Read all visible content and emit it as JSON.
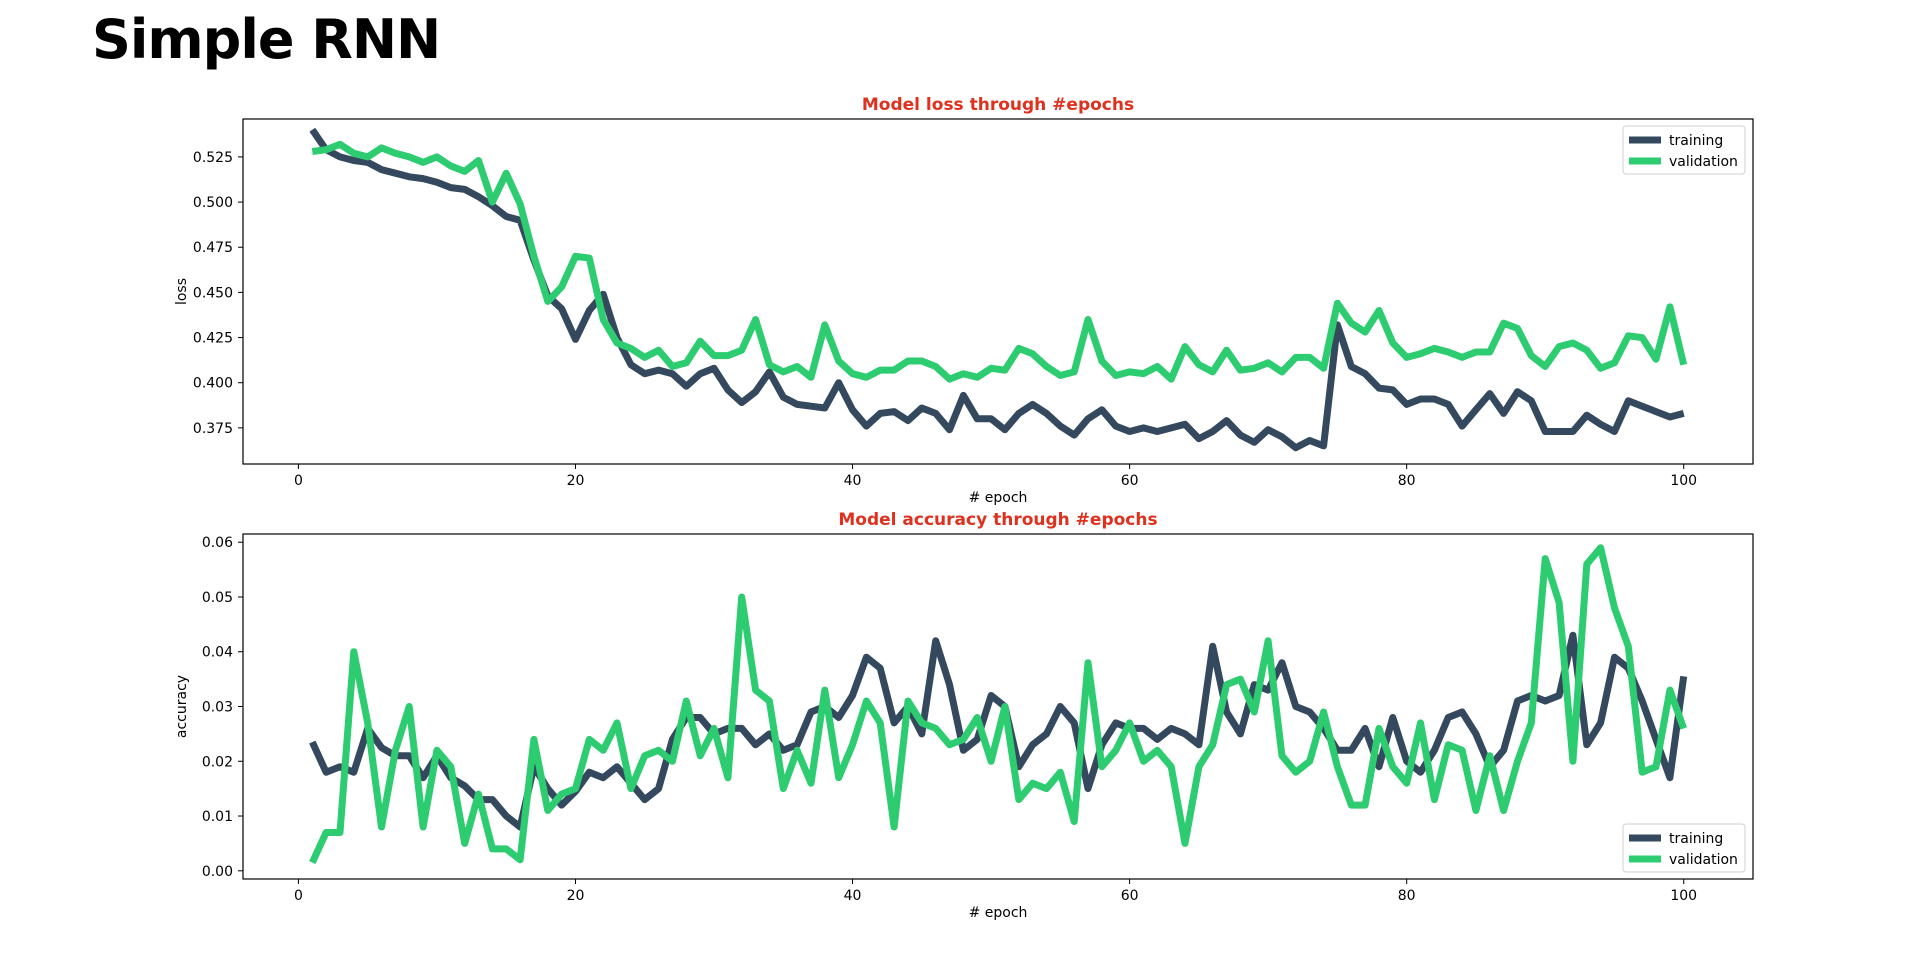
{
  "page": {
    "title": "Simple RNN"
  },
  "colors": {
    "training": "#34495e",
    "validation": "#2ecc71",
    "title": "#e0301e",
    "axis": "#000000"
  },
  "chart_data": [
    {
      "type": "line",
      "title": "Model loss through #epochs",
      "xlabel": "# epoch",
      "ylabel": "loss",
      "xlim": [
        -4,
        105
      ],
      "ylim": [
        0.355,
        0.546
      ],
      "xticks": [
        0,
        20,
        40,
        60,
        80,
        100
      ],
      "yticks": [
        0.375,
        0.4,
        0.425,
        0.45,
        0.475,
        0.5,
        0.525
      ],
      "ytick_labels": [
        "0.375",
        "0.400",
        "0.425",
        "0.450",
        "0.475",
        "0.500",
        "0.525"
      ],
      "legend": "top-right",
      "grid": false,
      "x_start": 1,
      "series": [
        {
          "name": "training",
          "color": "#34495e",
          "values": [
            0.54,
            0.529,
            0.525,
            0.523,
            0.522,
            0.518,
            0.516,
            0.514,
            0.513,
            0.511,
            0.508,
            0.507,
            0.503,
            0.498,
            0.492,
            0.49,
            0.468,
            0.448,
            0.441,
            0.424,
            0.44,
            0.449,
            0.425,
            0.41,
            0.405,
            0.407,
            0.405,
            0.398,
            0.405,
            0.408,
            0.396,
            0.389,
            0.395,
            0.406,
            0.392,
            0.388,
            0.387,
            0.386,
            0.4,
            0.385,
            0.376,
            0.383,
            0.384,
            0.379,
            0.386,
            0.383,
            0.374,
            0.393,
            0.38,
            0.38,
            0.374,
            0.383,
            0.388,
            0.383,
            0.376,
            0.371,
            0.38,
            0.385,
            0.376,
            0.373,
            0.375,
            0.373,
            0.375,
            0.377,
            0.369,
            0.373,
            0.379,
            0.371,
            0.367,
            0.374,
            0.37,
            0.364,
            0.368,
            0.365,
            0.432,
            0.409,
            0.405,
            0.397,
            0.396,
            0.388,
            0.391,
            0.391,
            0.388,
            0.376,
            0.385,
            0.394,
            0.383,
            0.395,
            0.39,
            0.373,
            0.373,
            0.373,
            0.382,
            0.377,
            0.373,
            0.39,
            0.387,
            0.384,
            0.381,
            0.383
          ]
        },
        {
          "name": "validation",
          "color": "#2ecc71",
          "values": [
            0.528,
            0.529,
            0.532,
            0.527,
            0.525,
            0.53,
            0.527,
            0.525,
            0.522,
            0.525,
            0.52,
            0.517,
            0.523,
            0.5,
            0.516,
            0.499,
            0.47,
            0.445,
            0.453,
            0.47,
            0.469,
            0.435,
            0.422,
            0.419,
            0.414,
            0.418,
            0.409,
            0.411,
            0.423,
            0.415,
            0.415,
            0.418,
            0.435,
            0.41,
            0.406,
            0.409,
            0.403,
            0.432,
            0.412,
            0.405,
            0.403,
            0.407,
            0.407,
            0.412,
            0.412,
            0.409,
            0.402,
            0.405,
            0.403,
            0.408,
            0.407,
            0.419,
            0.416,
            0.409,
            0.404,
            0.406,
            0.435,
            0.412,
            0.404,
            0.406,
            0.405,
            0.409,
            0.402,
            0.42,
            0.41,
            0.406,
            0.418,
            0.407,
            0.408,
            0.411,
            0.406,
            0.414,
            0.414,
            0.408,
            0.444,
            0.433,
            0.428,
            0.44,
            0.422,
            0.414,
            0.416,
            0.419,
            0.417,
            0.414,
            0.417,
            0.417,
            0.433,
            0.43,
            0.415,
            0.409,
            0.42,
            0.422,
            0.418,
            0.408,
            0.411,
            0.426,
            0.425,
            0.413,
            0.442,
            0.41
          ]
        }
      ]
    },
    {
      "type": "line",
      "title": "Model accuracy through #epochs",
      "xlabel": "# epoch",
      "ylabel": "accuracy",
      "xlim": [
        -4,
        105
      ],
      "ylim": [
        -0.0015,
        0.0615
      ],
      "xticks": [
        0,
        20,
        40,
        60,
        80,
        100
      ],
      "yticks": [
        0.0,
        0.01,
        0.02,
        0.03,
        0.04,
        0.05,
        0.06
      ],
      "ytick_labels": [
        "0.00",
        "0.01",
        "0.02",
        "0.03",
        "0.04",
        "0.05",
        "0.06"
      ],
      "legend": "bottom-right",
      "grid": false,
      "x_start": 1,
      "series": [
        {
          "name": "training",
          "color": "#34495e",
          "values": [
            0.0235,
            0.018,
            0.019,
            0.018,
            0.026,
            0.0225,
            0.021,
            0.021,
            0.017,
            0.021,
            0.017,
            0.0155,
            0.013,
            0.013,
            0.01,
            0.008,
            0.019,
            0.015,
            0.012,
            0.0145,
            0.018,
            0.017,
            0.019,
            0.016,
            0.013,
            0.015,
            0.024,
            0.028,
            0.028,
            0.025,
            0.026,
            0.026,
            0.023,
            0.025,
            0.022,
            0.023,
            0.029,
            0.03,
            0.028,
            0.032,
            0.039,
            0.037,
            0.027,
            0.03,
            0.025,
            0.042,
            0.034,
            0.022,
            0.024,
            0.032,
            0.03,
            0.019,
            0.023,
            0.025,
            0.03,
            0.027,
            0.015,
            0.023,
            0.027,
            0.026,
            0.026,
            0.024,
            0.026,
            0.025,
            0.023,
            0.041,
            0.029,
            0.025,
            0.034,
            0.033,
            0.038,
            0.03,
            0.029,
            0.026,
            0.022,
            0.022,
            0.026,
            0.019,
            0.028,
            0.02,
            0.018,
            0.022,
            0.028,
            0.029,
            0.025,
            0.019,
            0.022,
            0.031,
            0.032,
            0.031,
            0.032,
            0.043,
            0.023,
            0.027,
            0.039,
            0.037,
            0.031,
            0.024,
            0.017,
            0.0355
          ]
        },
        {
          "name": "validation",
          "color": "#2ecc71",
          "values": [
            0.0015,
            0.007,
            0.007,
            0.04,
            0.027,
            0.008,
            0.022,
            0.03,
            0.008,
            0.022,
            0.019,
            0.005,
            0.014,
            0.004,
            0.004,
            0.002,
            0.024,
            0.011,
            0.014,
            0.015,
            0.024,
            0.022,
            0.027,
            0.015,
            0.021,
            0.022,
            0.02,
            0.031,
            0.021,
            0.026,
            0.017,
            0.05,
            0.033,
            0.031,
            0.015,
            0.022,
            0.016,
            0.033,
            0.017,
            0.023,
            0.031,
            0.027,
            0.008,
            0.031,
            0.027,
            0.026,
            0.023,
            0.024,
            0.028,
            0.02,
            0.03,
            0.013,
            0.016,
            0.015,
            0.018,
            0.009,
            0.038,
            0.019,
            0.022,
            0.027,
            0.02,
            0.022,
            0.019,
            0.005,
            0.019,
            0.023,
            0.034,
            0.035,
            0.029,
            0.042,
            0.021,
            0.018,
            0.02,
            0.029,
            0.019,
            0.012,
            0.012,
            0.026,
            0.019,
            0.016,
            0.027,
            0.013,
            0.023,
            0.022,
            0.011,
            0.021,
            0.011,
            0.02,
            0.027,
            0.057,
            0.049,
            0.02,
            0.056,
            0.059,
            0.048,
            0.041,
            0.018,
            0.019,
            0.033,
            0.026
          ]
        }
      ]
    }
  ]
}
